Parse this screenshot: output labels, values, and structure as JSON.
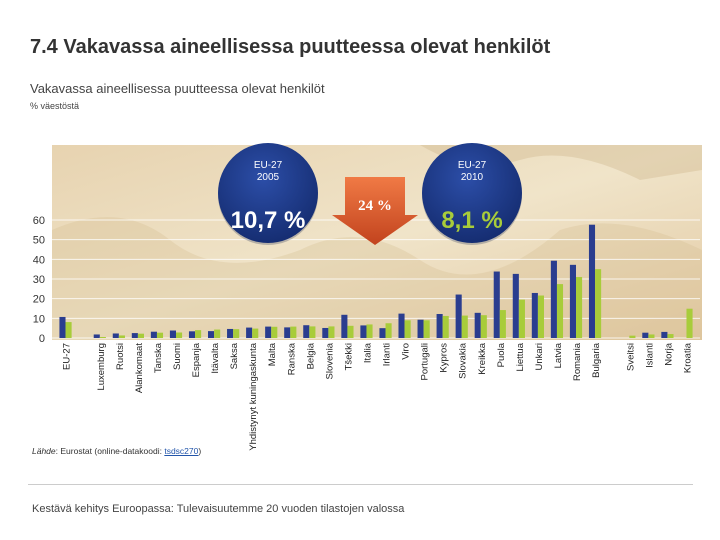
{
  "page": {
    "title": "7.4 Vakavassa aineellisessa puutteessa olevat henkilöt",
    "source_label": "Lähde",
    "source_text": ": Eurostat (online-datakoodi: ",
    "source_code": "tsdsc270",
    "source_close": ")",
    "footer": "Kestävä kehitys Euroopassa: Tulevaisuutemme 20 vuoden tilastojen valossa"
  },
  "chart_data": {
    "type": "bar",
    "title": "Vakavassa aineellisessa puutteessa olevat henkilöt",
    "ylabel": "% väestöstä",
    "ylim": [
      0,
      60
    ],
    "yticks": [
      0,
      10,
      20,
      30,
      40,
      50,
      60
    ],
    "categories": [
      "EU-27",
      "Luxemburg",
      "Ruotsi",
      "Alankomaat",
      "Tanska",
      "Suomi",
      "Espanja",
      "Itävalta",
      "Saksa",
      "Yhdistynyt kuningaskunta",
      "Malta",
      "Ranska",
      "Belgia",
      "Slovenia",
      "Tšekki",
      "Italia",
      "Irlanti",
      "Viro",
      "Portugali",
      "Kypros",
      "Slovakia",
      "Kreikka",
      "Puola",
      "Liettua",
      "Unkari",
      "Latvia",
      "Romania",
      "Bulgaria",
      "Sveitsi",
      "Islanti",
      "Norja",
      "Kroatia"
    ],
    "gaps_after": [
      0,
      27
    ],
    "series": [
      {
        "name": "2005",
        "color": "#2a3d8f",
        "values": [
          10.7,
          1.8,
          2.3,
          2.5,
          3.2,
          3.8,
          3.4,
          3.5,
          4.6,
          5.3,
          5.8,
          5.4,
          6.5,
          5.1,
          11.8,
          6.4,
          5.0,
          12.4,
          9.3,
          12.2,
          22.1,
          12.8,
          33.8,
          32.6,
          22.9,
          39.3,
          37.2,
          57.6,
          null,
          2.7,
          3.1,
          null
        ]
      },
      {
        "name": "2010",
        "color": "#a8cc3a",
        "values": [
          8.1,
          0.5,
          1.3,
          2.2,
          2.7,
          2.8,
          4.0,
          4.3,
          4.5,
          4.8,
          5.7,
          5.8,
          5.9,
          5.9,
          6.2,
          6.9,
          7.5,
          9.0,
          9.0,
          11.2,
          11.4,
          11.6,
          14.2,
          19.5,
          21.6,
          27.4,
          31.0,
          35.0,
          1.2,
          1.8,
          2.0,
          14.9
        ]
      }
    ],
    "annotations": {
      "left_label": "EU-27\n2005",
      "left_value": "10,7 %",
      "arrow_value": "24 %",
      "right_label": "EU-27\n2010",
      "right_value": "8,1 %"
    }
  }
}
